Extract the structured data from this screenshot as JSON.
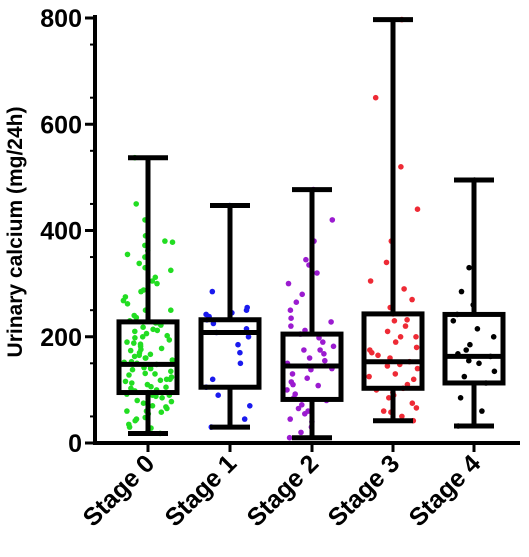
{
  "chart_data": {
    "type": "box",
    "title": "",
    "xlabel": "",
    "ylabel": "Urinary calcium (mg/24h)",
    "ylim": [
      0,
      800
    ],
    "yticks": [
      0,
      200,
      400,
      600,
      800
    ],
    "grid": false,
    "legend": "none",
    "categories": [
      "Stage 0",
      "Stage 1",
      "Stage 2",
      "Stage 3",
      "Stage 4"
    ],
    "colors": [
      "#22dd22",
      "#1a1aee",
      "#9b1bd0",
      "#ee2a35",
      "#000000"
    ],
    "boxes": [
      {
        "min": 18,
        "q1": 95,
        "median": 148,
        "q3": 228,
        "max": 537
      },
      {
        "min": 30,
        "q1": 105,
        "median": 208,
        "q3": 232,
        "max": 447
      },
      {
        "min": 10,
        "q1": 82,
        "median": 145,
        "q3": 205,
        "max": 477
      },
      {
        "min": 42,
        "q1": 103,
        "median": 153,
        "q3": 243,
        "max": 797
      },
      {
        "min": 32,
        "q1": 113,
        "median": 163,
        "q3": 242,
        "max": 495
      }
    ],
    "points": [
      [
        20,
        28,
        35,
        42,
        48,
        55,
        60,
        65,
        70,
        75,
        80,
        85,
        88,
        92,
        95,
        98,
        100,
        103,
        106,
        110,
        113,
        116,
        120,
        124,
        128,
        131,
        135,
        138,
        142,
        145,
        148,
        150,
        153,
        156,
        160,
        163,
        167,
        170,
        174,
        178,
        182,
        186,
        190,
        194,
        198,
        202,
        206,
        210,
        214,
        218,
        222,
        226,
        230,
        240,
        250,
        262,
        275,
        288,
        300,
        312,
        325,
        338,
        350,
        362,
        372,
        380,
        390,
        420,
        450,
        537,
        18,
        30,
        45,
        58,
        68,
        78,
        90,
        105,
        118,
        130,
        140,
        152,
        165,
        176,
        188,
        200,
        212,
        224,
        236,
        250,
        268,
        285,
        305,
        330,
        355,
        378,
        160,
        120,
        90,
        60
      ],
      [
        30,
        45,
        70,
        90,
        105,
        120,
        150,
        170,
        185,
        200,
        208,
        215,
        225,
        232,
        238,
        242,
        245,
        250,
        255,
        285,
        447
      ],
      [
        10,
        20,
        30,
        45,
        55,
        65,
        72,
        80,
        85,
        92,
        100,
        108,
        115,
        122,
        130,
        138,
        145,
        150,
        155,
        160,
        168,
        175,
        182,
        190,
        198,
        205,
        212,
        220,
        228,
        235,
        250,
        265,
        280,
        300,
        320,
        335,
        345,
        380,
        420,
        477,
        60,
        110,
        140,
        175,
        40
      ],
      [
        42,
        50,
        58,
        66,
        75,
        85,
        95,
        103,
        110,
        120,
        130,
        140,
        148,
        153,
        160,
        170,
        180,
        190,
        200,
        210,
        220,
        232,
        243,
        255,
        270,
        290,
        305,
        340,
        380,
        440,
        520,
        650,
        797,
        100,
        165,
        230,
        60,
        125,
        200,
        90,
        175,
        145
      ],
      [
        32,
        60,
        85,
        113,
        125,
        135,
        150,
        155,
        163,
        168,
        175,
        185,
        200,
        215,
        230,
        242,
        260,
        285,
        330,
        495
      ]
    ]
  }
}
